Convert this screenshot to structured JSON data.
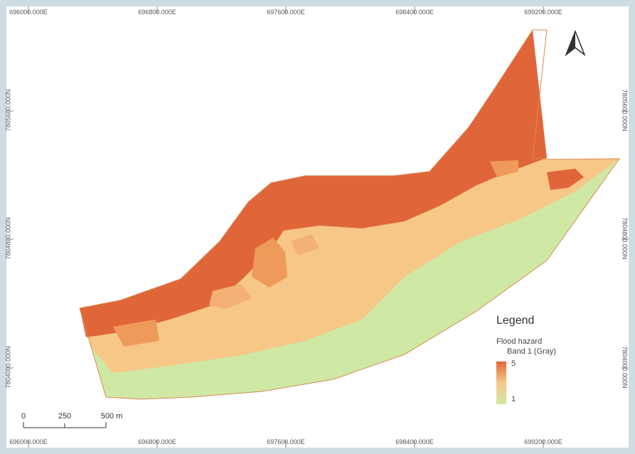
{
  "map": {
    "top_coords": [
      "696000.000E",
      "696800.000E",
      "697600.000E",
      "698400.000E",
      "699200.000E"
    ],
    "bottom_coords": [
      "696000.000E",
      "696800.000E",
      "697600.000E",
      "698400.000E",
      "699200.000E"
    ],
    "left_coords": [
      "7805600.000N",
      "7804800.000N",
      "7804000.000N"
    ],
    "right_coords": [
      "7805600.000N",
      "7804800.000N",
      "7804000.000N"
    ],
    "north_arrow": "north-arrow-icon"
  },
  "legend": {
    "title": "Legend",
    "layer": "Flood hazard",
    "band": "Band 1 (Gray)",
    "max_label": "5",
    "min_label": "1",
    "colors": {
      "high": "#e0663a",
      "mid": "#f6c787",
      "low": "#cfe8a4"
    }
  },
  "scalebar": {
    "labels": [
      "0",
      "250",
      "500 m"
    ]
  }
}
